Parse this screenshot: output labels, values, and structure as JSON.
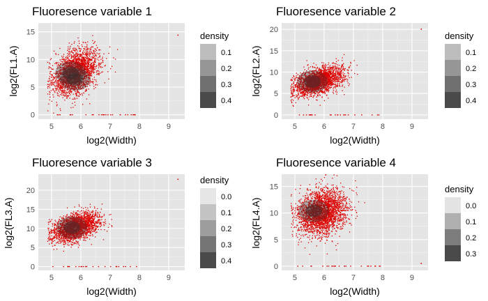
{
  "chart_data": [
    {
      "type": "scatter",
      "title": "Fluoresence variable 1",
      "xlabel": "log2(Width)",
      "ylabel": "log2(FL1.A)",
      "xlim": [
        4.55,
        9.55
      ],
      "ylim": [
        -0.8,
        16.6
      ],
      "xticks": [
        5,
        6,
        7,
        8,
        9
      ],
      "yticks": [
        0,
        5,
        10,
        15
      ],
      "grid": true,
      "point_color": "#dd0000",
      "cloud": {
        "xc": 5.8,
        "yc": 7.8,
        "slope": 1.9,
        "sd": 1.9,
        "n": 2400,
        "x_sd": 0.38
      },
      "outliers": {
        "y_floor": 0.0,
        "n_floor": 30,
        "max_point": [
          9.3,
          14.5
        ]
      },
      "density_core": [
        {
          "x": 5.65,
          "y": 7.6
        },
        {
          "x": 5.8,
          "y": 6.4
        }
      ],
      "legend": {
        "title": "density",
        "levels": [
          "0.1",
          "0.2",
          "0.3",
          "0.4"
        ],
        "colors": [
          "#bdbdbd",
          "#969696",
          "#707070",
          "#4a4a4a"
        ]
      }
    },
    {
      "type": "scatter",
      "title": "Fluoresence variable 2",
      "xlabel": "log2(Width)",
      "ylabel": "log2(FL2.A)",
      "xlim": [
        4.55,
        9.55
      ],
      "ylim": [
        -1.0,
        21.5
      ],
      "xticks": [
        5,
        6,
        7,
        8,
        9
      ],
      "yticks": [
        0,
        5,
        10,
        15,
        20
      ],
      "grid": true,
      "point_color": "#dd0000",
      "cloud": {
        "xc": 5.8,
        "yc": 8.0,
        "slope": 1.9,
        "sd": 1.5,
        "n": 2400,
        "x_sd": 0.4
      },
      "outliers": {
        "y_floor": 0.0,
        "n_floor": 25,
        "max_point": [
          9.3,
          20.2
        ]
      },
      "density_core": [
        {
          "x": 5.6,
          "y": 7.8
        }
      ],
      "legend": {
        "title": "density",
        "levels": [
          "0.1",
          "0.2",
          "0.3",
          "0.4"
        ],
        "colors": [
          "#bdbdbd",
          "#969696",
          "#707070",
          "#4a4a4a"
        ]
      }
    },
    {
      "type": "scatter",
      "title": "Fluoresence variable 3",
      "xlabel": "log2(Width)",
      "ylabel": "log2(FL3.A)",
      "xlim": [
        4.55,
        9.55
      ],
      "ylim": [
        -1.0,
        24.2
      ],
      "xticks": [
        5,
        6,
        7,
        8,
        9
      ],
      "yticks": [
        0,
        5,
        10,
        15,
        20
      ],
      "grid": true,
      "point_color": "#dd0000",
      "cloud": {
        "xc": 5.8,
        "yc": 10.4,
        "slope": 2.2,
        "sd": 1.7,
        "n": 2400,
        "x_sd": 0.38
      },
      "outliers": {
        "y_floor": 0.0,
        "n_floor": 25,
        "max_point": [
          9.3,
          23.0
        ]
      },
      "density_core": [
        {
          "x": 5.7,
          "y": 10.2
        }
      ],
      "legend": {
        "title": "density",
        "levels": [
          "0.0",
          "0.1",
          "0.2",
          "0.3",
          "0.4"
        ],
        "colors": [
          "#e6e6e6",
          "#c4c4c4",
          "#9d9d9d",
          "#757575",
          "#4a4a4a"
        ]
      }
    },
    {
      "type": "scatter",
      "title": "Fluoresence variable 4",
      "xlabel": "log2(Width)",
      "ylabel": "log2(FL4.A)",
      "xlim": [
        4.55,
        9.55
      ],
      "ylim": [
        -0.8,
        17.3
      ],
      "xticks": [
        5,
        6,
        7,
        8,
        9
      ],
      "yticks": [
        0,
        5,
        10,
        15
      ],
      "grid": true,
      "point_color": "#dd0000",
      "cloud": {
        "xc": 5.9,
        "yc": 10.2,
        "slope": 0.9,
        "sd": 2.1,
        "n": 2600,
        "x_sd": 0.42
      },
      "outliers": {
        "y_floor": 0.0,
        "n_floor": 25,
        "max_point": [
          9.3,
          0.6
        ]
      },
      "density_core": [
        {
          "x": 5.65,
          "y": 10.4
        }
      ],
      "legend": {
        "title": "density",
        "levels": [
          "0.0",
          "0.1",
          "0.2",
          "0.3"
        ],
        "colors": [
          "#e3e3e3",
          "#b0b0b0",
          "#7d7d7d",
          "#4a4a4a"
        ]
      }
    }
  ]
}
